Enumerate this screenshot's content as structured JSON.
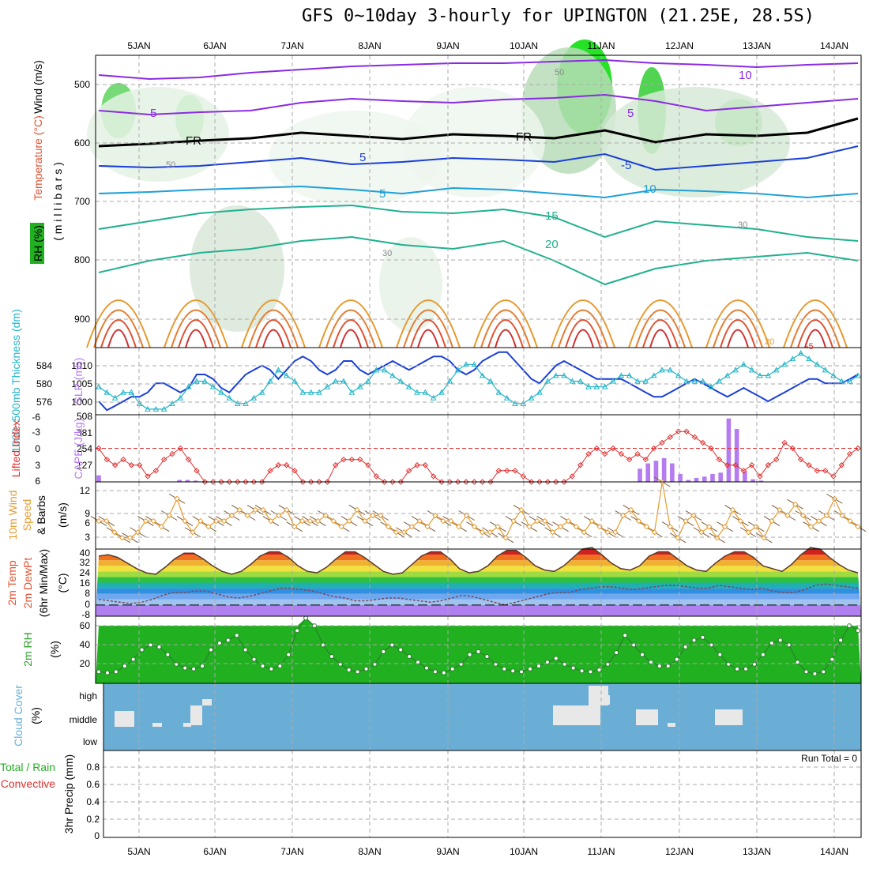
{
  "title": "GFS 0~10day 3-hourly for UPINGTON (21.25E, 28.5S)",
  "dates": [
    "5JAN",
    "6JAN",
    "7JAN",
    "8JAN",
    "9JAN",
    "10JAN",
    "11JAN",
    "12JAN",
    "13JAN",
    "14JAN"
  ],
  "colors": {
    "grid": "#aaaaaa",
    "pressure": "#1a3fd6",
    "thickness": "#1fb5c8",
    "li": "#e03030",
    "cape": "#b57cf0",
    "wind": "#e69a2e",
    "rh": "#2ca02c",
    "cloud": "#6aaed6",
    "cloudfill": "#e8e8e8"
  },
  "panels": {
    "sounding": {
      "ylabels": {
        "wind": "Wind (m/s)",
        "temperature": "Temperature (°C)",
        "millibars": "( m i l l i b a r s )",
        "rh": "RH (%)"
      },
      "levels": [
        "500",
        "600",
        "700",
        "800",
        "900"
      ],
      "contour_labels": [
        "10",
        "5",
        "5",
        "FR",
        "FR",
        "5",
        "-5",
        "5",
        "10",
        "15",
        "20",
        "50",
        "50",
        "30",
        "30",
        "20",
        "-5"
      ]
    },
    "pressure": {
      "ylabels": {
        "thickness": "1000~500mb Thickness (dm)",
        "slp": "SLP (mb)"
      },
      "left_ticks": [
        "584",
        "580",
        "576"
      ],
      "right_ticks": [
        "1010",
        "1005",
        "1000"
      ]
    },
    "stability": {
      "ylabels": {
        "li": "Lifted Index",
        "cape": "CAPE (J/kg)"
      },
      "left_ticks": [
        "-6",
        "-3",
        "0",
        "3",
        "6"
      ],
      "right_ticks": [
        "508",
        "381",
        "254",
        "127"
      ]
    },
    "wind": {
      "ylabels": {
        "a": "10m Wind",
        "b": "Speed",
        "c": "& Barbs",
        "unit": "(m/s)"
      },
      "ticks": [
        "12",
        "9",
        "6",
        "3"
      ]
    },
    "temp": {
      "ylabels": {
        "a": "2m Temp",
        "b": "2m DewPt",
        "c": "(6hr Min/Max)",
        "unit": "(°C)"
      },
      "ticks": [
        "40",
        "32",
        "24",
        "16",
        "8",
        "0",
        "-8"
      ]
    },
    "rh": {
      "ylabels": {
        "a": "2m RH",
        "unit": "(%)"
      },
      "ticks": [
        "60",
        "40",
        "20"
      ]
    },
    "cloud": {
      "ylabels": {
        "a": "Cloud Cover",
        "unit": "(%)"
      },
      "levels": [
        "high",
        "middle",
        "low"
      ]
    },
    "precip": {
      "ylabels": {
        "a": "Total / Rain",
        "b": "Convective",
        "c": "3hr Precip (mm)"
      },
      "ticks": [
        "0.8",
        "0.6",
        "0.4",
        "0.2",
        "0"
      ],
      "run_total": "Run Total = 0"
    }
  },
  "chart_data": [
    {
      "type": "line",
      "title": "SLP (mb) and 1000~500mb Thickness (dm)",
      "x": "3-hourly steps from 4JAN 12Z to 14JAN 06Z",
      "series": [
        {
          "name": "SLP (mb)",
          "ylim": [
            998,
            1013
          ],
          "values": [
            1001,
            999,
            1000,
            1001,
            1002,
            1002,
            1003,
            1005,
            1005,
            1004,
            1003,
            1004,
            1007,
            1007,
            1006,
            1004,
            1003,
            1005,
            1007,
            1008,
            1009,
            1008,
            1006,
            1008,
            1010,
            1011,
            1010,
            1008,
            1007,
            1008,
            1010,
            1010,
            1008,
            1007,
            1008,
            1009,
            1010,
            1009,
            1008,
            1009,
            1010,
            1011,
            1011,
            1010,
            1008,
            1007,
            1008,
            1010,
            1011,
            1012,
            1012,
            1010,
            1008,
            1006,
            1005,
            1007,
            1009,
            1010,
            1009,
            1008,
            1007,
            1006,
            1006,
            1006,
            1006,
            1005,
            1004,
            1003,
            1002,
            1002,
            1003,
            1004,
            1005,
            1006,
            1005,
            1004,
            1003,
            1002,
            1003,
            1004,
            1003,
            1002,
            1001,
            1002,
            1003,
            1004,
            1005,
            1006,
            1006,
            1005,
            1005,
            1005,
            1006,
            1007
          ]
        },
        {
          "name": "Thickness (dm)",
          "ylim": [
            574,
            586
          ],
          "values": [
            579,
            578,
            577,
            578,
            578,
            576,
            575,
            575,
            575,
            576,
            577,
            579,
            580,
            580,
            579,
            578,
            577,
            576,
            576,
            577,
            578,
            580,
            582,
            581,
            580,
            578,
            578,
            578,
            579,
            580,
            580,
            578,
            579,
            580,
            582,
            582,
            581,
            580,
            579,
            578,
            578,
            577,
            578,
            580,
            582,
            583,
            583,
            581,
            580,
            578,
            577,
            576,
            576,
            577,
            578,
            580,
            581,
            581,
            580,
            580,
            579,
            579,
            579,
            580,
            581,
            581,
            580,
            580,
            581,
            582,
            582,
            581,
            580,
            580,
            580,
            579,
            580,
            581,
            582,
            583,
            582,
            581,
            581,
            582,
            583,
            584,
            585,
            584,
            583,
            582,
            581,
            580,
            580,
            581
          ]
        }
      ]
    },
    {
      "type": "bar",
      "title": "CAPE (J/kg) and Lifted Index",
      "series": [
        {
          "name": "CAPE (J/kg)",
          "ylim": [
            0,
            508
          ],
          "values": [
            50,
            0,
            0,
            0,
            0,
            0,
            0,
            0,
            0,
            0,
            15,
            15,
            10,
            0,
            0,
            0,
            0,
            0,
            0,
            0,
            0,
            0,
            0,
            0,
            0,
            0,
            0,
            0,
            0,
            0,
            0,
            0,
            0,
            0,
            0,
            0,
            0,
            0,
            0,
            0,
            0,
            0,
            0,
            0,
            0,
            0,
            0,
            0,
            0,
            0,
            0,
            0,
            0,
            0,
            0,
            0,
            0,
            0,
            0,
            0,
            0,
            0,
            0,
            0,
            0,
            0,
            0,
            100,
            140,
            160,
            180,
            140,
            60,
            15,
            30,
            40,
            60,
            70,
            480,
            400,
            80,
            20,
            10,
            0,
            0,
            0,
            0,
            0,
            0,
            0,
            0,
            0,
            0,
            0,
            0
          ]
        },
        {
          "name": "Lifted Index",
          "ylim": [
            6,
            -6
          ],
          "values": [
            0,
            2,
            3,
            2,
            3,
            3,
            5,
            4,
            2,
            1,
            0,
            2,
            4,
            6,
            6,
            6,
            6,
            6,
            6,
            6,
            6,
            4,
            3,
            3,
            4,
            6,
            6,
            6,
            6,
            3,
            2,
            2,
            2,
            3,
            5,
            6,
            6,
            6,
            4,
            3,
            3,
            5,
            6,
            6,
            6,
            6,
            6,
            6,
            6,
            4,
            4,
            4,
            5,
            6,
            6,
            6,
            6,
            6,
            5,
            3,
            1,
            0,
            1,
            0,
            1,
            2,
            1,
            2,
            0,
            -1,
            -2,
            -3,
            -3,
            -2,
            -1,
            0,
            2,
            3,
            3,
            4,
            3,
            5,
            3,
            2,
            -1,
            0,
            2,
            3,
            4,
            4,
            5,
            3,
            1,
            0
          ]
        }
      ]
    },
    {
      "type": "line",
      "title": "10m Wind Speed (m/s)",
      "ylim": [
        1,
        13
      ],
      "values": [
        6,
        6,
        4,
        3,
        3,
        4,
        6,
        6,
        5,
        7,
        10,
        6,
        4,
        6,
        5,
        6,
        6,
        7,
        8,
        7,
        8,
        8,
        6,
        7,
        8,
        5,
        6,
        6,
        6,
        7,
        6,
        5,
        6,
        8,
        6,
        7,
        7,
        5,
        4,
        4,
        5,
        6,
        5,
        7,
        6,
        6,
        5,
        7,
        5,
        4,
        4,
        5,
        3,
        6,
        8,
        5,
        6,
        6,
        4,
        5,
        6,
        5,
        4,
        6,
        5,
        4,
        4,
        7,
        8,
        6,
        5,
        4,
        13,
        5,
        3,
        6,
        7,
        4,
        5,
        3,
        5,
        8,
        6,
        4,
        5,
        3,
        6,
        8,
        7,
        9,
        7,
        5,
        6,
        7,
        10,
        7,
        6,
        5
      ]
    },
    {
      "type": "area",
      "title": "2m Temp / 2m DewPt (°C)",
      "ylim": [
        -8,
        40
      ],
      "series": [
        {
          "name": "2m Temp",
          "values": [
            35,
            36,
            34,
            30,
            26,
            23,
            22,
            27,
            33,
            37,
            37,
            33,
            28,
            24,
            22,
            24,
            29,
            35,
            38,
            38,
            34,
            28,
            24,
            23,
            27,
            33,
            38,
            38,
            34,
            29,
            24,
            22,
            23,
            29,
            35,
            38,
            38,
            33,
            26,
            23,
            24,
            28,
            35,
            39,
            39,
            34,
            28,
            25,
            24,
            28,
            34,
            40,
            41,
            36,
            30,
            26,
            25,
            28,
            35,
            38,
            38,
            33,
            28,
            25,
            24,
            30,
            35,
            38,
            38,
            34,
            28,
            26,
            24,
            29,
            36,
            41,
            40,
            34,
            29,
            25,
            23
          ]
        },
        {
          "name": "2m DewPt",
          "values": [
            4,
            3,
            2,
            1,
            2,
            4,
            7,
            9,
            9,
            10,
            10,
            8,
            6,
            5,
            6,
            8,
            10,
            12,
            12,
            11,
            10,
            8,
            6,
            5,
            3,
            3,
            4,
            5,
            5,
            4,
            3,
            2,
            3,
            5,
            7,
            6,
            4,
            2,
            0,
            2,
            4,
            6,
            8,
            9,
            9,
            11,
            12,
            13,
            13,
            12,
            11,
            12,
            13,
            14,
            14,
            13,
            12,
            12,
            14,
            13,
            12,
            11,
            12,
            10,
            9,
            9,
            11,
            14,
            15,
            14,
            13,
            12
          ]
        }
      ]
    },
    {
      "type": "area",
      "title": "2m RH (%)",
      "ylim": [
        0,
        70
      ],
      "values": [
        12,
        11,
        12,
        18,
        25,
        35,
        40,
        38,
        30,
        20,
        16,
        15,
        18,
        35,
        42,
        45,
        50,
        35,
        25,
        18,
        15,
        18,
        30,
        55,
        68,
        60,
        40,
        28,
        20,
        14,
        12,
        15,
        20,
        33,
        40,
        35,
        28,
        22,
        16,
        12,
        11,
        15,
        20,
        30,
        33,
        28,
        20,
        15,
        13,
        12,
        15,
        18,
        22,
        26,
        20,
        16,
        13,
        12,
        14,
        20,
        32,
        50,
        40,
        30,
        22,
        18,
        18,
        25,
        38,
        45,
        48,
        40,
        30,
        20,
        15,
        15,
        20,
        30,
        42,
        45,
        40,
        22,
        12,
        10,
        12,
        25,
        45,
        60,
        55
      ]
    },
    {
      "type": "heatmap",
      "title": "Cloud Cover (%)",
      "levels": [
        "high",
        "middle",
        "low"
      ]
    },
    {
      "type": "bar",
      "title": "3hr Precip (mm)",
      "ylim": [
        0,
        1
      ],
      "values": []
    }
  ]
}
